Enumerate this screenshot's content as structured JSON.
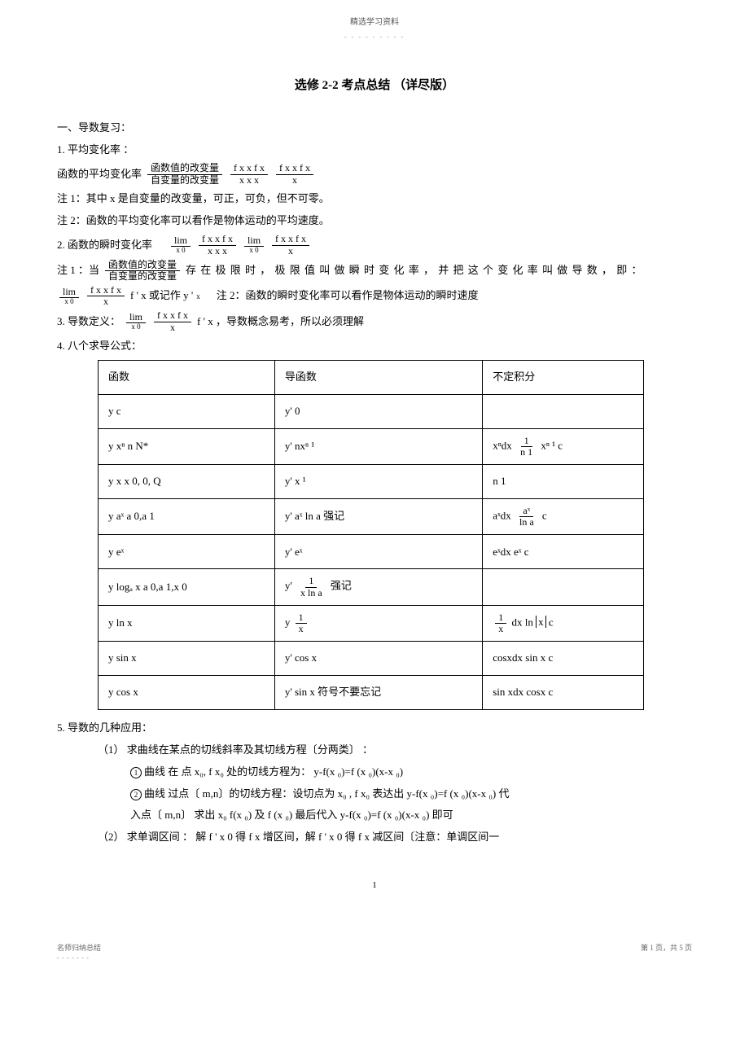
{
  "header": {
    "top": "精选学习资料",
    "dots": "- - - - - - - - -"
  },
  "title": "选修  2-2  考点总结 （详尽版）",
  "s1": {
    "h": "一、导数复习："
  },
  "s1_1": {
    "label": "1. 平均变化率 ："
  },
  "s1_1a": {
    "lead": "函数的平均变化率",
    "frac1_num": "函数值的改变量",
    "frac1_den": "自变量的改变量",
    "frac2_num": "f  x     x     f  x",
    "frac2_den": "x     x   x",
    "frac3_num": "f  x     x     f  x",
    "frac3_den": "x"
  },
  "s1_1n1": "注 1：其中    x 是自变量的改变量，可正，可负，但不可零。",
  "s1_1n2": "注 2：函数的平均变化率可以看作是物体运动的平均速度。",
  "s1_2": {
    "lead": "2. 函数的瞬时变化率",
    "lim": "lim",
    "limsub": "x  0",
    "frac1_num": "f  x     x   f  x",
    "frac1_den": "x     x   x",
    "frac2_num": "f  x     x     f  x",
    "frac2_den": "x"
  },
  "s1_2n1a": "注  1 ：当",
  "s1_2n1_frac_num": "函数值的改变量",
  "s1_2n1_frac_den": "自变量的改变量",
  "s1_2n1b": "存 在 极 限 时 ， 极 限 值 叫 做 瞬 时 变 化 率 ， 并 把 这 个 变 化 率 叫 做 导 数 ， 即 ：",
  "s1_2line": {
    "lim": "lim",
    "limsub": "x  0",
    "frac_num": "f  x    x    f  x",
    "frac_den": "x",
    "mid": "f ' x  或记作  y '",
    "midsub": "x",
    "tail": "注  2：函数的瞬时变化率可以看作是物体运动的瞬时速度"
  },
  "s1_3": {
    "lead": "3. 导数定义：",
    "lim": "lim",
    "limsub": "x  0",
    "frac_num": "f  x    x    f  x",
    "frac_den": "x",
    "tail": "f ' x ，导数概念易考，所以必须理解"
  },
  "s1_4": "4. 八个求导公式：",
  "table": {
    "head": [
      "函数",
      "导函数",
      "不定积分"
    ],
    "rows": [
      {
        "c1": "y   c",
        "c2": "y'   0",
        "c3": ""
      },
      {
        "c1": "y   xⁿ  n   N*",
        "c2": "y'   nxⁿ ¹",
        "c3_a": "xⁿdx",
        "c3_num": "1",
        "c3_den": "n  1",
        "c3_b": "xⁿ ¹   c"
      },
      {
        "c1": "y   x   x  0,     0,     Q",
        "c2": "y'    x  ¹",
        "c3": "n    1"
      },
      {
        "c1": "y   aˣ  a  0,a  1",
        "c2": "y'   aˣ ln a 强记",
        "c3_a": "aˣdx",
        "c3_num": "aˣ",
        "c3_den": "ln a",
        "c3_b": "c"
      },
      {
        "c1": "y   eˣ",
        "c2": "y'   eˣ",
        "c3": "eˣdx   eˣ   c"
      },
      {
        "c1": "y   logₐ x  a   0,a  1,x  0",
        "c2_a": "y'",
        "c2_num": "1",
        "c2_den": "x ln a",
        "c2_b": "强记",
        "c3": ""
      },
      {
        "c1": "y   ln x",
        "c2_a": "y",
        "c2_num": "1",
        "c2_den": "x",
        "c2_b": "",
        "c3_a": "",
        "c3_num": "1",
        "c3_den": "x",
        "c3_b": "dx   ln",
        "c3_abs": "x",
        "c3_c": "c"
      },
      {
        "c1": "y   sin x",
        "c2": "y'   cos x",
        "c3": "cosxdx   sin x   c"
      },
      {
        "c1": "y   cos x",
        "c2": "y'    sin x 符号不要忘记",
        "c3": "sin xdx     cosx   c"
      }
    ]
  },
  "s1_5": "5. 导数的几种应用：",
  "s1_5_1": "（1）  求曲线在某点的切线斜率及其切线方程〔分两类〕   ：",
  "s1_5_1a": "曲线 在 点  x₀, f  x₀   处的切线方程为：  y-f(x ₀)=f   (x ₀)(x-x  ₀)",
  "s1_5_1b": "曲线 过点〔 m,n〕的切线方程：设切点为     x₀ , f  x₀     表达出  y-f(x  ₀)=f   (x ₀)(x-x  ₀)     代",
  "s1_5_1b2": "入点〔 m,n〕    求出 x₀    f(x  ₀) 及 f  (x ₀)    最后代入  y-f(x  ₀)=f   (x ₀)(x-x  ₀) 即可",
  "s1_5_2": "（2）   求单调区间 ： 解 f ' x    0 得 f  x  增区间，解   f ' x    0 得 f  x  减区间〔注意：单调区间一",
  "pagenum": "1",
  "footer": {
    "left": "名师归纳总结",
    "leftdots": "- - - - - - -",
    "right": "第 1 页，共 5 页"
  }
}
